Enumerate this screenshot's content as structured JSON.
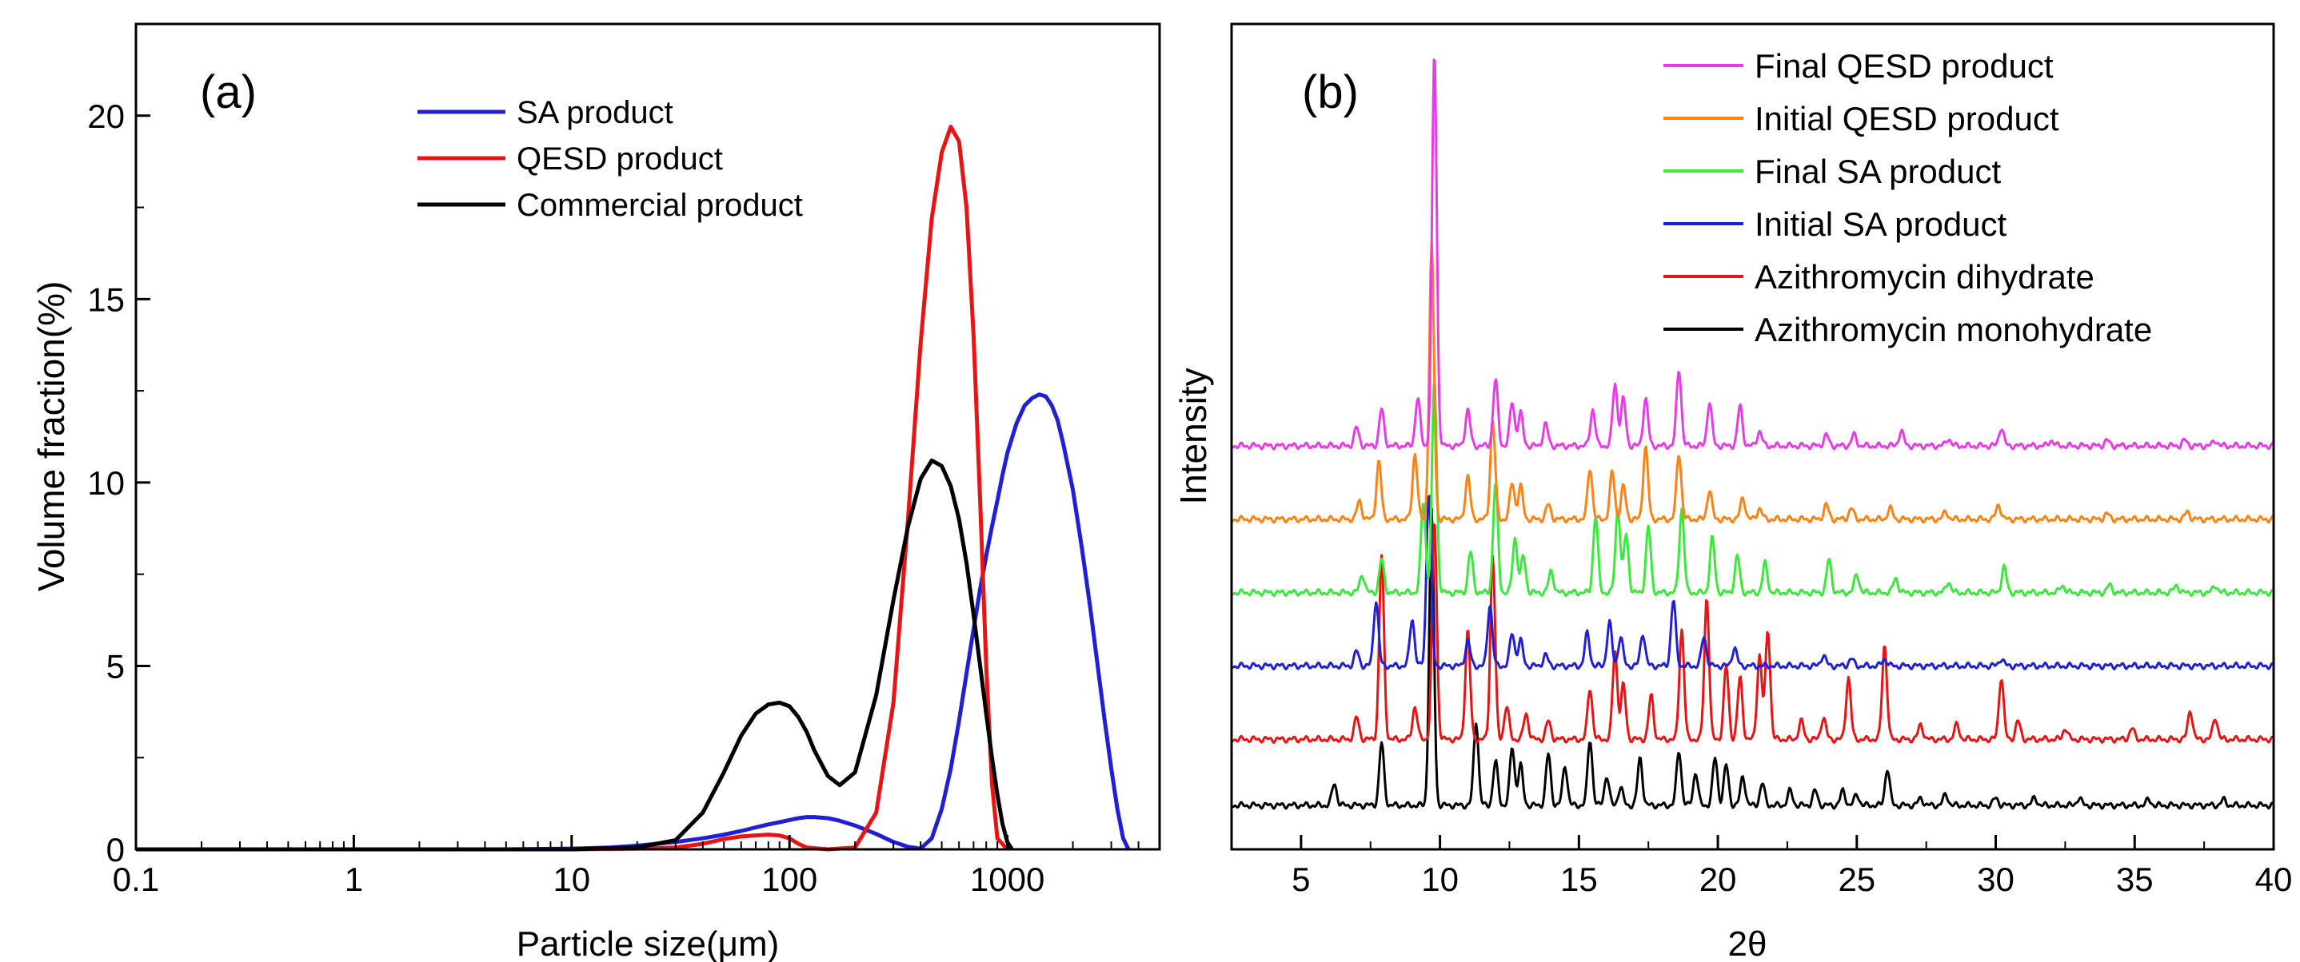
{
  "chart_data": [
    {
      "type": "line",
      "panel_label": "(a)",
      "xlabel": "Particle size(μm)",
      "ylabel": "Volume fraction(%)",
      "xscale": "log",
      "xlim": [
        0.1,
        5000
      ],
      "ylim": [
        0,
        22.5
      ],
      "x_ticks": [
        0.1,
        1,
        10,
        100,
        1000
      ],
      "x_tick_labels": [
        "0.1",
        "1",
        "10",
        "100",
        "1000"
      ],
      "y_ticks": [
        0,
        5,
        10,
        15,
        20
      ],
      "y_tick_labels": [
        "0",
        "5",
        "10",
        "15",
        "20"
      ],
      "legend_position": "top-center",
      "series": [
        {
          "name": "SA product",
          "color": "#1f1fd6",
          "x": [
            0.1,
            1,
            5,
            10,
            15,
            20,
            30,
            40,
            50,
            60,
            70,
            80,
            90,
            100,
            110,
            120,
            130,
            150,
            170,
            200,
            250,
            300,
            350,
            400,
            450,
            500,
            550,
            600,
            650,
            700,
            750,
            800,
            850,
            900,
            950,
            1000,
            1100,
            1200,
            1300,
            1400,
            1500,
            1600,
            1700,
            1800,
            2000,
            2200,
            2400,
            2600,
            2800,
            3000,
            3200,
            3400,
            3600
          ],
          "y": [
            0,
            0,
            0,
            0.02,
            0.05,
            0.1,
            0.2,
            0.3,
            0.4,
            0.5,
            0.6,
            0.68,
            0.74,
            0.8,
            0.85,
            0.88,
            0.88,
            0.85,
            0.78,
            0.65,
            0.42,
            0.2,
            0.07,
            0.02,
            0.3,
            1.1,
            2.2,
            3.5,
            4.8,
            6.0,
            7.1,
            8.0,
            8.8,
            9.5,
            10.2,
            10.8,
            11.6,
            12.1,
            12.3,
            12.4,
            12.35,
            12.1,
            11.7,
            11.1,
            9.8,
            8.2,
            6.6,
            5.0,
            3.5,
            2.2,
            1.1,
            0.3,
            0
          ]
        },
        {
          "name": "QESD product",
          "color": "#e81414",
          "x": [
            0.1,
            1,
            10,
            20,
            30,
            40,
            50,
            60,
            70,
            80,
            90,
            100,
            110,
            120,
            150,
            200,
            250,
            300,
            350,
            400,
            450,
            500,
            550,
            600,
            650,
            700,
            750,
            800,
            850,
            900,
            1000
          ],
          "y": [
            0,
            0,
            0,
            0.02,
            0.05,
            0.15,
            0.28,
            0.35,
            0.38,
            0.4,
            0.38,
            0.3,
            0.15,
            0.05,
            0,
            0.05,
            1.0,
            4.0,
            9.0,
            13.8,
            17.2,
            19.0,
            19.7,
            19.3,
            17.5,
            14.0,
            9.5,
            5.0,
            1.8,
            0.3,
            0
          ]
        },
        {
          "name": "Commercial product",
          "color": "#000000",
          "x": [
            0.1,
            1,
            10,
            20,
            30,
            40,
            50,
            60,
            70,
            80,
            90,
            100,
            110,
            120,
            130,
            150,
            170,
            200,
            250,
            300,
            350,
            400,
            450,
            500,
            550,
            600,
            650,
            700,
            750,
            800,
            850,
            900,
            950,
            1000,
            1050
          ],
          "y": [
            0,
            0,
            0,
            0.05,
            0.25,
            1.0,
            2.1,
            3.1,
            3.7,
            3.95,
            4.0,
            3.9,
            3.6,
            3.2,
            2.7,
            2.0,
            1.75,
            2.1,
            4.2,
            6.8,
            8.8,
            10.1,
            10.6,
            10.45,
            9.9,
            9.0,
            7.8,
            6.4,
            5.0,
            3.7,
            2.5,
            1.5,
            0.7,
            0.2,
            0
          ]
        }
      ]
    },
    {
      "type": "line",
      "panel_label": "(b)",
      "xlabel": "2θ",
      "ylabel": "Intensity",
      "xlim": [
        2.5,
        40
      ],
      "ylim": [
        0,
        22.5
      ],
      "x_ticks": [
        5,
        10,
        15,
        20,
        25,
        30,
        35,
        40
      ],
      "x_tick_labels": [
        "5",
        "10",
        "15",
        "20",
        "25",
        "30",
        "35",
        "40"
      ],
      "legend_position": "top-right",
      "series": [
        {
          "name": "Final QESD product",
          "color": "#e83be8",
          "baseline": 11.0,
          "peaks": [
            [
              7.0,
              0.5
            ],
            [
              7.9,
              1.0
            ],
            [
              9.2,
              1.3
            ],
            [
              9.8,
              10.8
            ],
            [
              11.0,
              1.0
            ],
            [
              12.0,
              1.8
            ],
            [
              12.6,
              1.2
            ],
            [
              12.9,
              0.9
            ],
            [
              13.8,
              0.6
            ],
            [
              15.5,
              1.0
            ],
            [
              16.3,
              1.7
            ],
            [
              16.6,
              1.3
            ],
            [
              17.4,
              1.3
            ],
            [
              18.6,
              2.1
            ],
            [
              19.7,
              1.2
            ],
            [
              20.8,
              1.1
            ],
            [
              21.5,
              0.4
            ],
            [
              23.9,
              0.3
            ],
            [
              24.9,
              0.3
            ],
            [
              26.6,
              0.4
            ],
            [
              28.3,
              0.2
            ],
            [
              30.2,
              0.5
            ],
            [
              32.0,
              0.15
            ],
            [
              34.0,
              0.15
            ],
            [
              36.8,
              0.15
            ],
            [
              37.9,
              0.15
            ]
          ]
        },
        {
          "name": "Initial QESD product",
          "color": "#ff8214",
          "baseline": 9.0,
          "peaks": [
            [
              7.1,
              0.5
            ],
            [
              7.8,
              1.6
            ],
            [
              9.1,
              1.8
            ],
            [
              9.7,
              7.5
            ],
            [
              11.0,
              1.2
            ],
            [
              11.9,
              2.7
            ],
            [
              12.6,
              1.0
            ],
            [
              12.9,
              0.9
            ],
            [
              13.9,
              0.4
            ],
            [
              15.4,
              1.4
            ],
            [
              16.2,
              1.3
            ],
            [
              16.6,
              0.9
            ],
            [
              17.4,
              2.0
            ],
            [
              18.6,
              1.8
            ],
            [
              19.7,
              0.8
            ],
            [
              20.9,
              0.6
            ],
            [
              21.5,
              0.3
            ],
            [
              23.9,
              0.4
            ],
            [
              24.8,
              0.3
            ],
            [
              26.2,
              0.3
            ],
            [
              28.2,
              0.2
            ],
            [
              30.1,
              0.4
            ],
            [
              34.0,
              0.15
            ],
            [
              36.9,
              0.2
            ]
          ]
        },
        {
          "name": "Final SA product",
          "color": "#3be83b",
          "baseline": 7.0,
          "peaks": [
            [
              7.2,
              0.5
            ],
            [
              7.9,
              0.9
            ],
            [
              9.4,
              2.5
            ],
            [
              9.8,
              5.8
            ],
            [
              11.1,
              1.1
            ],
            [
              12.0,
              3.0
            ],
            [
              12.7,
              1.5
            ],
            [
              13.0,
              1.0
            ],
            [
              14.0,
              0.6
            ],
            [
              15.6,
              2.1
            ],
            [
              16.4,
              2.3
            ],
            [
              16.7,
              1.6
            ],
            [
              17.5,
              1.8
            ],
            [
              18.7,
              2.3
            ],
            [
              19.8,
              1.5
            ],
            [
              20.7,
              1.0
            ],
            [
              21.7,
              0.8
            ],
            [
              24.0,
              0.9
            ],
            [
              25.0,
              0.5
            ],
            [
              26.4,
              0.4
            ],
            [
              28.3,
              0.3
            ],
            [
              30.3,
              0.7
            ],
            [
              32.4,
              0.2
            ],
            [
              34.1,
              0.2
            ],
            [
              36.5,
              0.2
            ],
            [
              37.9,
              0.2
            ]
          ]
        },
        {
          "name": "Initial SA product",
          "color": "#1f1fd6",
          "baseline": 5.0,
          "peaks": [
            [
              7.0,
              0.4
            ],
            [
              7.7,
              1.8
            ],
            [
              9.0,
              1.3
            ],
            [
              9.6,
              4.8
            ],
            [
              11.0,
              0.7
            ],
            [
              11.8,
              1.7
            ],
            [
              12.6,
              0.9
            ],
            [
              12.9,
              0.7
            ],
            [
              13.8,
              0.3
            ],
            [
              15.3,
              0.9
            ],
            [
              16.1,
              1.2
            ],
            [
              16.5,
              0.8
            ],
            [
              17.3,
              0.9
            ],
            [
              18.4,
              1.8
            ],
            [
              19.5,
              0.8
            ],
            [
              20.6,
              0.5
            ],
            [
              23.8,
              0.3
            ],
            [
              24.8,
              0.2
            ],
            [
              26.0,
              0.2
            ],
            [
              30.2,
              0.2
            ]
          ]
        },
        {
          "name": "Azithromycin dihydrate",
          "color": "#e81414",
          "baseline": 3.0,
          "peaks": [
            [
              7.0,
              0.6
            ],
            [
              7.9,
              5.0
            ],
            [
              9.1,
              0.9
            ],
            [
              9.8,
              6.0
            ],
            [
              11.0,
              3.0
            ],
            [
              11.9,
              5.0
            ],
            [
              12.4,
              0.9
            ],
            [
              13.1,
              0.7
            ],
            [
              13.9,
              0.5
            ],
            [
              15.4,
              1.4
            ],
            [
              16.3,
              2.4
            ],
            [
              16.6,
              1.5
            ],
            [
              17.6,
              1.2
            ],
            [
              18.7,
              3.0
            ],
            [
              19.6,
              3.9
            ],
            [
              20.3,
              2.0
            ],
            [
              20.8,
              1.7
            ],
            [
              21.5,
              2.3
            ],
            [
              21.8,
              3.0
            ],
            [
              23.0,
              0.5
            ],
            [
              23.8,
              0.6
            ],
            [
              24.7,
              1.7
            ],
            [
              26.0,
              2.6
            ],
            [
              27.3,
              0.4
            ],
            [
              28.6,
              0.4
            ],
            [
              30.2,
              1.7
            ],
            [
              30.8,
              0.5
            ],
            [
              32.5,
              0.3
            ],
            [
              34.9,
              0.3
            ],
            [
              37.0,
              0.8
            ],
            [
              37.9,
              0.6
            ]
          ]
        },
        {
          "name": "Azithromycin monohydrate",
          "color": "#000000",
          "baseline": 1.2,
          "peaks": [
            [
              6.2,
              0.6
            ],
            [
              7.9,
              1.7
            ],
            [
              9.7,
              8.0
            ],
            [
              11.3,
              2.3
            ],
            [
              12.0,
              1.2
            ],
            [
              12.6,
              1.6
            ],
            [
              12.9,
              1.1
            ],
            [
              13.9,
              1.4
            ],
            [
              14.5,
              1.1
            ],
            [
              15.4,
              1.8
            ],
            [
              16.0,
              0.8
            ],
            [
              16.5,
              0.5
            ],
            [
              17.2,
              1.3
            ],
            [
              18.6,
              1.5
            ],
            [
              19.2,
              0.9
            ],
            [
              19.9,
              1.3
            ],
            [
              20.3,
              1.1
            ],
            [
              20.9,
              0.8
            ],
            [
              21.6,
              0.6
            ],
            [
              22.6,
              0.4
            ],
            [
              23.5,
              0.4
            ],
            [
              24.5,
              0.4
            ],
            [
              25.0,
              0.3
            ],
            [
              26.1,
              1.0
            ],
            [
              27.3,
              0.2
            ],
            [
              28.2,
              0.3
            ],
            [
              30.0,
              0.2
            ],
            [
              31.4,
              0.2
            ],
            [
              33.0,
              0.2
            ],
            [
              35.5,
              0.15
            ],
            [
              38.2,
              0.15
            ]
          ]
        }
      ]
    }
  ]
}
